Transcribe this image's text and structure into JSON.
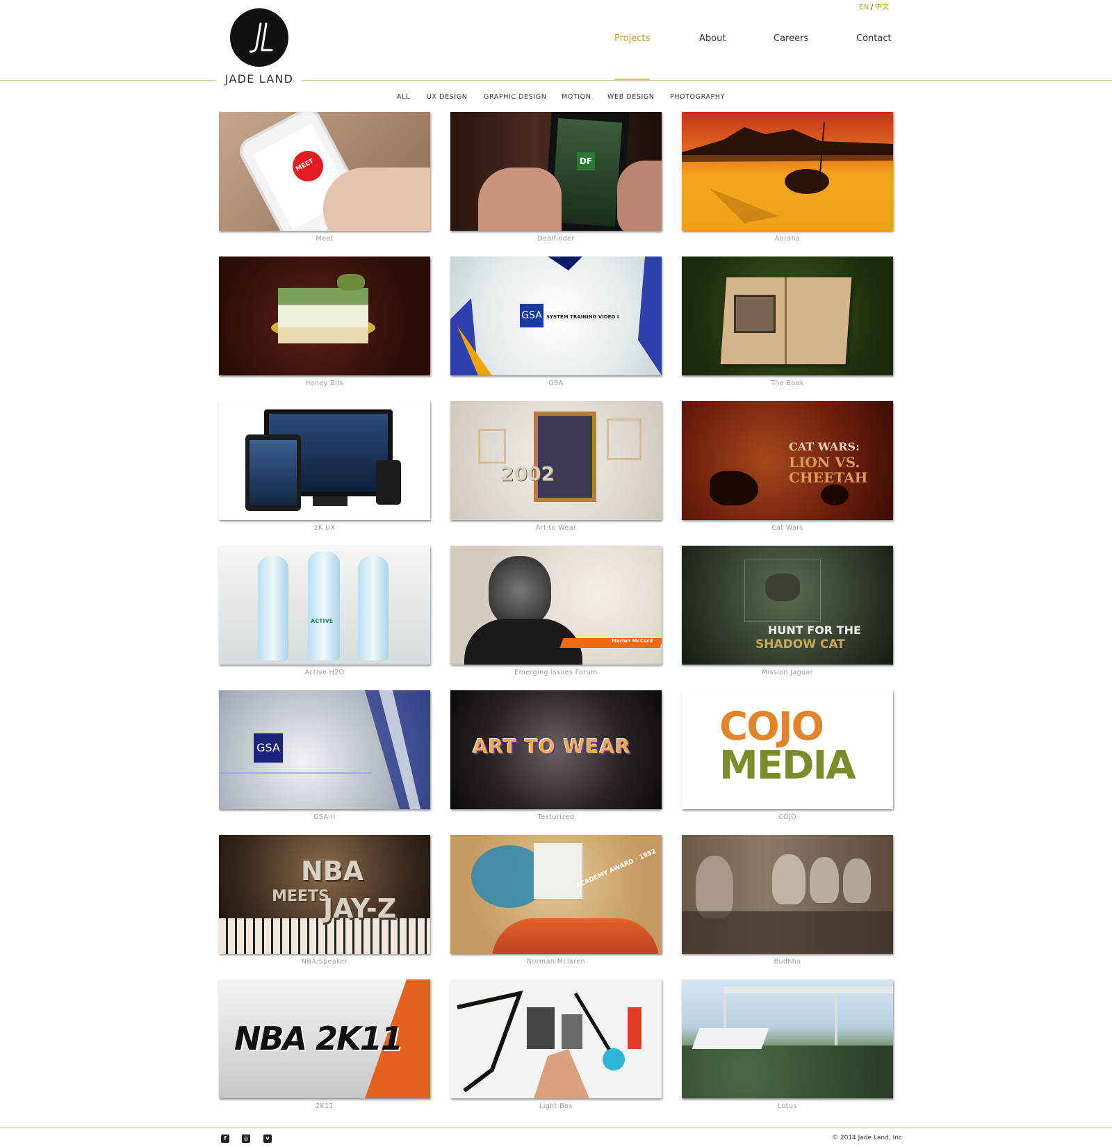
{
  "lang": {
    "active": "EN",
    "separator": "/",
    "alt": "中文"
  },
  "logo": {
    "monogram": "JL",
    "wordmark": "JADE LAND"
  },
  "nav": [
    {
      "label": "Projects",
      "active": true
    },
    {
      "label": "About",
      "active": false
    },
    {
      "label": "Careers",
      "active": false
    },
    {
      "label": "Contact",
      "active": false
    }
  ],
  "filters": [
    "ALL",
    "UX DESIGN",
    "GRAPHIC DESIGN",
    "MOTION",
    "WEB DESIGN",
    "PHOTOGRAPHY"
  ],
  "projects": [
    {
      "caption": "Meet",
      "thumb_text": "MEET"
    },
    {
      "caption": "Dealfinder",
      "thumb_text": "DF"
    },
    {
      "caption": "Abraha",
      "thumb_text": ""
    },
    {
      "caption": "Honey Bits",
      "thumb_text": ""
    },
    {
      "caption": "GSA",
      "thumb_text": "GSA"
    },
    {
      "caption": "The Book",
      "thumb_text": ""
    },
    {
      "caption": "2K UX",
      "thumb_text": ""
    },
    {
      "caption": "Art to Wear",
      "thumb_text": "2002"
    },
    {
      "caption": "Cat Wars",
      "thumb_text": "CAT WARS:"
    },
    {
      "caption": "Active H2O",
      "thumb_text": "ACTIVE"
    },
    {
      "caption": "Emerging Issues Forum",
      "thumb_text": "Marian McCord"
    },
    {
      "caption": "Mission Jaguar",
      "thumb_text": "HUNT FOR THE"
    },
    {
      "caption": "GSA-II",
      "thumb_text": "GSA"
    },
    {
      "caption": "Texturized",
      "thumb_text": "ART TO WEAR"
    },
    {
      "caption": "COJO",
      "thumb_text": "COJO"
    },
    {
      "caption": "NBA:Speaker",
      "thumb_text": "NBA"
    },
    {
      "caption": "Norman Mclaren",
      "thumb_text": "ACADEMY AWARD · 1952"
    },
    {
      "caption": "Budhha",
      "thumb_text": ""
    },
    {
      "caption": "2K11",
      "thumb_text": "NBA 2K11"
    },
    {
      "caption": "Light Box",
      "thumb_text": ""
    },
    {
      "caption": "Lotus",
      "thumb_text": ""
    }
  ],
  "thumb_extra": {
    "cat_wars_line2": "LION VS.",
    "cat_wars_line3": "CHEETAH",
    "jaguar_line2": "SHADOW CAT",
    "cojo_line2": "MEDIA",
    "gsa_sub": "SYSTEM TRAINING VIDEO I",
    "nba_line2": "MEETS",
    "nba_line3": "JAY-Z"
  },
  "social": [
    {
      "icon": "facebook-icon",
      "glyph": "f"
    },
    {
      "icon": "instagram-icon",
      "glyph": "◎"
    },
    {
      "icon": "vimeo-icon",
      "glyph": "v"
    }
  ],
  "footer": {
    "copyright": "© 2014 Jade Land, Inc"
  },
  "colors": {
    "accent": "#c89a1a",
    "rule": "#d9c07a",
    "text": "#333333",
    "caption": "#999999"
  }
}
